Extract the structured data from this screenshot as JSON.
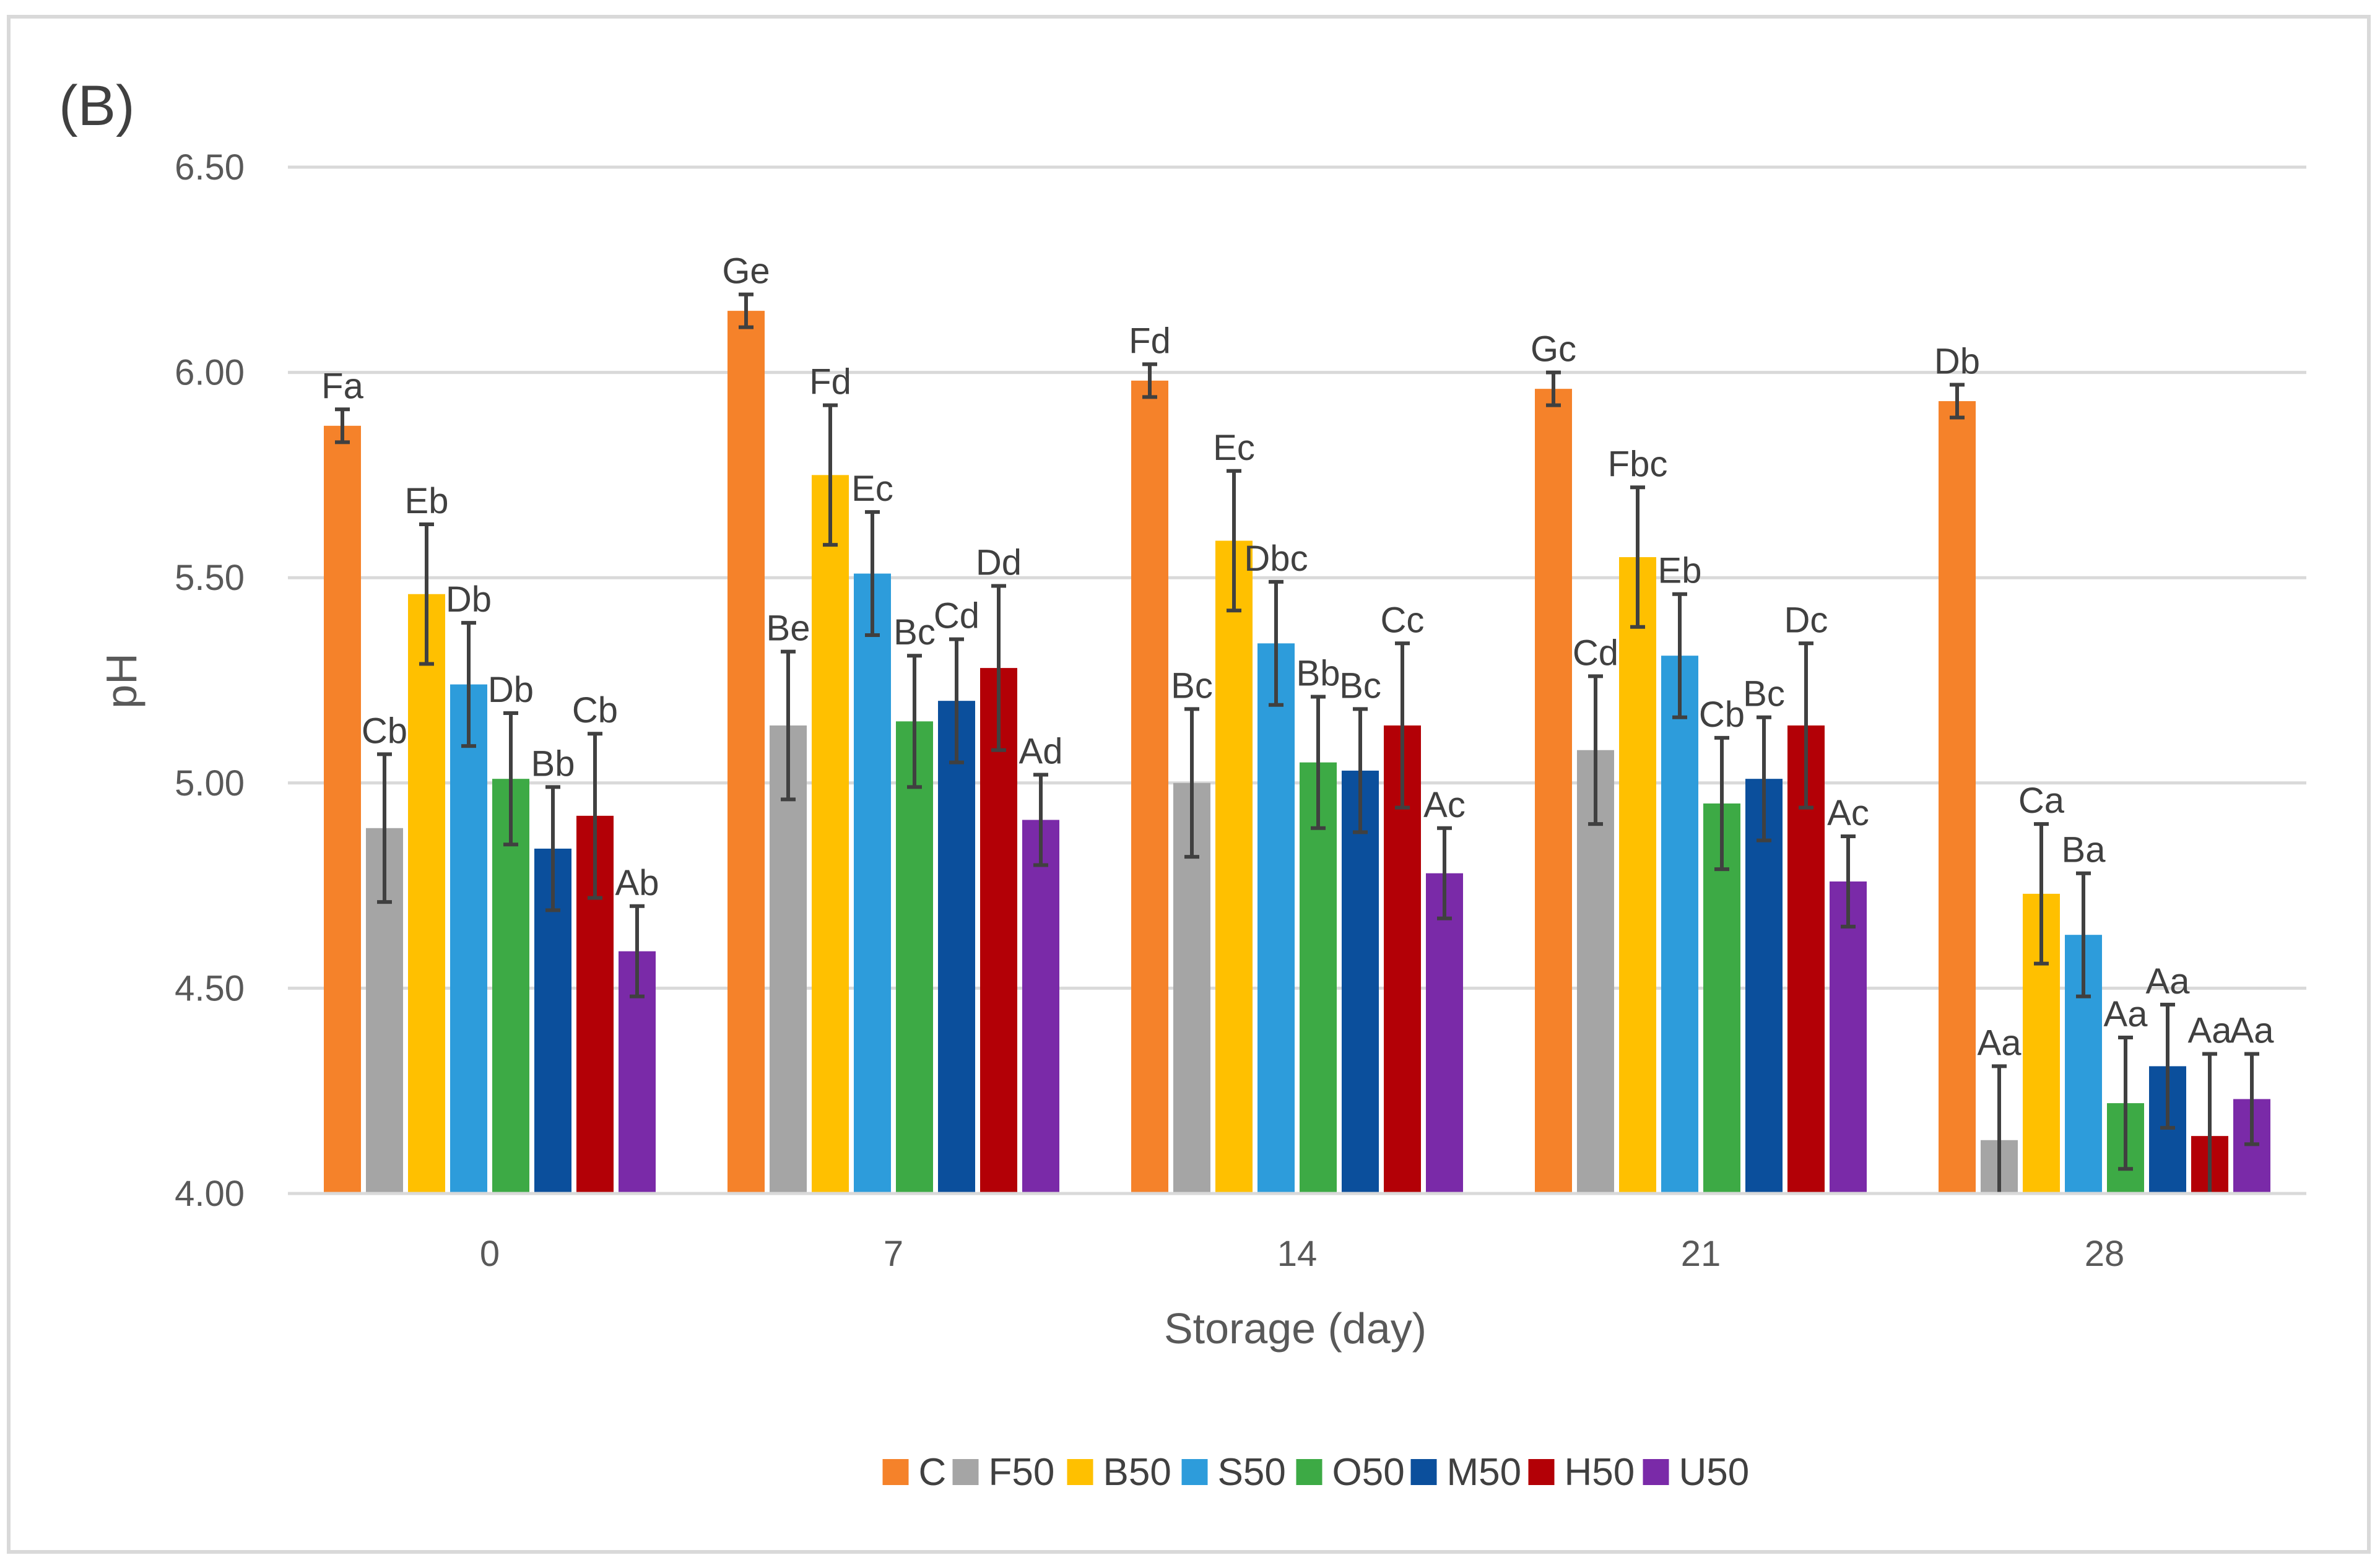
{
  "chart_data": {
    "type": "bar",
    "panel_label": "(B)",
    "title": "",
    "xlabel": "Storage (day)",
    "ylabel": "pH",
    "ylim": [
      4.0,
      6.5
    ],
    "yticks": [
      "4.00",
      "4.50",
      "5.00",
      "5.50",
      "6.00",
      "6.50"
    ],
    "ytick_values": [
      4.0,
      4.5,
      5.0,
      5.5,
      6.0,
      6.5
    ],
    "grid": true,
    "legend_position": "bottom",
    "categories": [
      "0",
      "7",
      "14",
      "21",
      "28"
    ],
    "series": [
      {
        "name": "C",
        "color": "#F5822A",
        "values": [
          5.87,
          6.15,
          5.98,
          5.96,
          5.93
        ],
        "errors": [
          0.04,
          0.04,
          0.04,
          0.04,
          0.04
        ],
        "labels": [
          "Fa",
          "Ge",
          "Fd",
          "Gc",
          "Db"
        ]
      },
      {
        "name": "F50",
        "color": "#A5A5A5",
        "values": [
          4.89,
          5.14,
          5.0,
          5.08,
          4.13
        ],
        "errors": [
          0.18,
          0.18,
          0.18,
          0.18,
          0.18
        ],
        "labels": [
          "Cb",
          "Be",
          "Bc",
          "Cd",
          "Aa"
        ]
      },
      {
        "name": "B50",
        "color": "#FFC000",
        "values": [
          5.46,
          5.75,
          5.59,
          5.55,
          4.73
        ],
        "errors": [
          0.17,
          0.17,
          0.17,
          0.17,
          0.17
        ],
        "labels": [
          "Eb",
          "Fd",
          "Ec",
          "Fbc",
          "Ca"
        ]
      },
      {
        "name": "S50",
        "color": "#2D9CDB",
        "values": [
          5.24,
          5.51,
          5.34,
          5.31,
          4.63
        ],
        "errors": [
          0.15,
          0.15,
          0.15,
          0.15,
          0.15
        ],
        "labels": [
          "Db",
          "Ec",
          "Dbc",
          "Eb",
          "Ba"
        ]
      },
      {
        "name": "O50",
        "color": "#3DAA45",
        "values": [
          5.01,
          5.15,
          5.05,
          4.95,
          4.22
        ],
        "errors": [
          0.16,
          0.16,
          0.16,
          0.16,
          0.16
        ],
        "labels": [
          "Db",
          "Bc",
          "Bb",
          "Cb",
          "Aa"
        ]
      },
      {
        "name": "M50",
        "color": "#0B4F9C",
        "values": [
          4.84,
          5.2,
          5.03,
          5.01,
          4.31
        ],
        "errors": [
          0.15,
          0.15,
          0.15,
          0.15,
          0.15
        ],
        "labels": [
          "Bb",
          "Cd",
          "Bc",
          "Bc",
          "Aa"
        ]
      },
      {
        "name": "H50",
        "color": "#B30006",
        "values": [
          4.92,
          5.28,
          5.14,
          5.14,
          4.14
        ],
        "errors": [
          0.2,
          0.2,
          0.2,
          0.2,
          0.2
        ],
        "labels": [
          "Cb",
          "Dd",
          "Cc",
          "Dc",
          "Aa"
        ]
      },
      {
        "name": "U50",
        "color": "#7A2AA8",
        "values": [
          4.59,
          4.91,
          4.78,
          4.76,
          4.23
        ],
        "errors": [
          0.11,
          0.11,
          0.11,
          0.11,
          0.11
        ],
        "labels": [
          "Ab",
          "Ad",
          "Ac",
          "Ac",
          "Aa"
        ]
      }
    ]
  }
}
